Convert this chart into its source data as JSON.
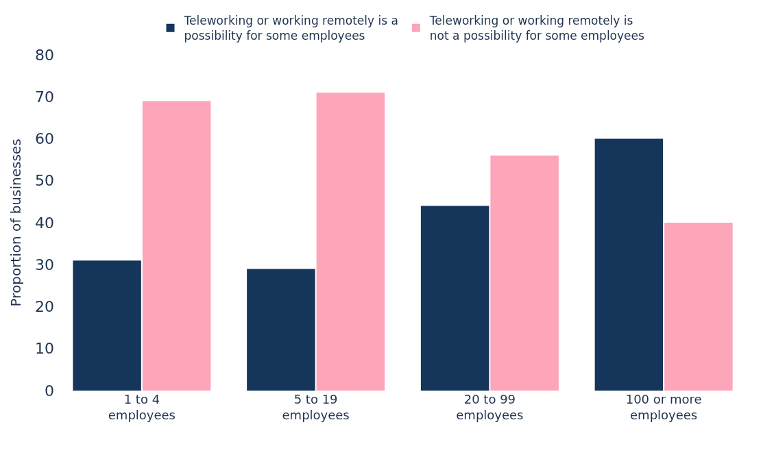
{
  "chart_data": {
    "type": "bar",
    "ylabel": "Proportion of businesses",
    "categories": [
      "1 to 4 employees",
      "5 to 19 employees",
      "20 to 99 employees",
      "100 or more employees"
    ],
    "series": [
      {
        "name": "Teleworking or working remotely is a possibility for some employees",
        "color": "#15355a",
        "values": [
          31,
          29,
          44,
          60
        ]
      },
      {
        "name": "Teleworking or working remotely is not a possibility for some employees",
        "color": "#fda5b9",
        "values": [
          69,
          71,
          56,
          40
        ]
      }
    ],
    "ylim": [
      0,
      80
    ],
    "yticks": [
      0,
      10,
      20,
      30,
      40,
      50,
      60,
      70,
      80
    ],
    "legend": "top"
  }
}
